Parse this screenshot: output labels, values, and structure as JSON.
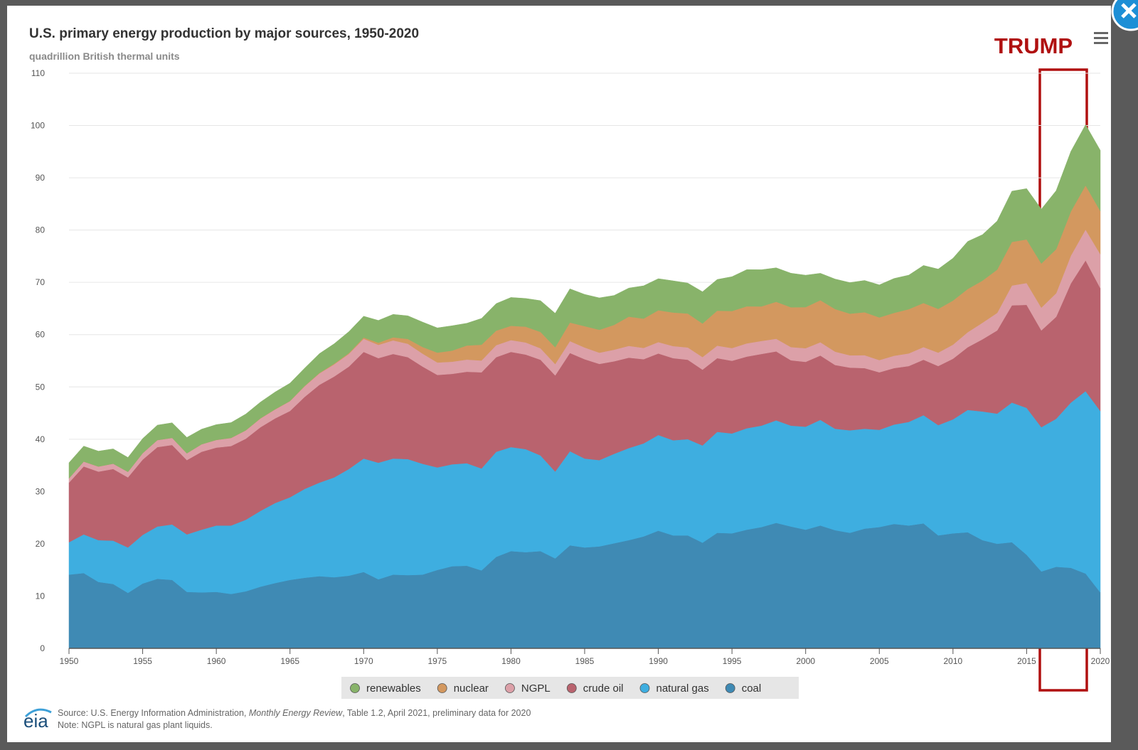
{
  "chart_data": {
    "type": "stacked_area",
    "title": "U.S. primary energy production by major sources, 1950-2020",
    "subtitle": "quadrillion British thermal units",
    "annotation": "TRUMP",
    "source_prefix": "Source: U.S. Energy Information Administration, ",
    "source_italic": "Monthly Energy Review",
    "source_suffix": ", Table 1.2, April 2021, preliminary data for 2020",
    "note": "Note: NGPL is natural gas plant liquids.",
    "logo": "eia",
    "x": [
      1950,
      1951,
      1952,
      1953,
      1954,
      1955,
      1956,
      1957,
      1958,
      1959,
      1960,
      1961,
      1962,
      1963,
      1964,
      1965,
      1966,
      1967,
      1968,
      1969,
      1970,
      1971,
      1972,
      1973,
      1974,
      1975,
      1976,
      1977,
      1978,
      1979,
      1980,
      1981,
      1982,
      1983,
      1984,
      1985,
      1986,
      1987,
      1988,
      1989,
      1990,
      1991,
      1992,
      1993,
      1994,
      1995,
      1996,
      1997,
      1998,
      1999,
      2000,
      2001,
      2002,
      2003,
      2004,
      2005,
      2006,
      2007,
      2008,
      2009,
      2010,
      2011,
      2012,
      2013,
      2014,
      2015,
      2016,
      2017,
      2018,
      2019,
      2020
    ],
    "xlim": [
      1950,
      2020
    ],
    "xticks": [
      1950,
      1955,
      1960,
      1965,
      1970,
      1975,
      1980,
      1985,
      1990,
      1995,
      2000,
      2005,
      2010,
      2015,
      2020
    ],
    "ylim": [
      0,
      110
    ],
    "yticks": [
      0,
      10,
      20,
      30,
      40,
      50,
      60,
      70,
      80,
      90,
      100,
      110
    ],
    "grid": true,
    "legend": "bottom",
    "series": [
      {
        "name": "coal",
        "color": "#3f8ab4",
        "values": [
          14.1,
          14.4,
          12.7,
          12.3,
          10.6,
          12.4,
          13.3,
          13.1,
          10.8,
          10.7,
          10.8,
          10.4,
          10.9,
          11.8,
          12.5,
          13.1,
          13.5,
          13.8,
          13.6,
          13.9,
          14.6,
          13.2,
          14.1,
          14.0,
          14.1,
          15.0,
          15.7,
          15.8,
          14.9,
          17.5,
          18.6,
          18.4,
          18.6,
          17.2,
          19.7,
          19.3,
          19.5,
          20.1,
          20.7,
          21.4,
          22.5,
          21.6,
          21.6,
          20.2,
          22.1,
          22.0,
          22.7,
          23.2,
          24.0,
          23.3,
          22.7,
          23.5,
          22.6,
          22.1,
          22.9,
          23.2,
          23.8,
          23.5,
          23.9,
          21.6,
          22.0,
          22.2,
          20.7,
          20.0,
          20.3,
          17.9,
          14.7,
          15.6,
          15.4,
          14.3,
          10.7
        ]
      },
      {
        "name": "natural gas",
        "color": "#3eaee0",
        "values": [
          6.2,
          7.4,
          8.0,
          8.3,
          8.7,
          9.3,
          10.0,
          10.6,
          11.0,
          12.0,
          12.7,
          13.1,
          13.7,
          14.5,
          15.3,
          15.8,
          17.0,
          17.9,
          19.1,
          20.4,
          21.7,
          22.3,
          22.2,
          22.2,
          21.2,
          19.6,
          19.5,
          19.6,
          19.5,
          20.1,
          19.9,
          19.7,
          18.3,
          16.6,
          18.0,
          17.0,
          16.5,
          17.1,
          17.6,
          17.8,
          18.3,
          18.2,
          18.4,
          18.6,
          19.3,
          19.1,
          19.4,
          19.4,
          19.6,
          19.3,
          19.7,
          20.2,
          19.4,
          19.6,
          19.1,
          18.6,
          19.0,
          19.8,
          20.7,
          21.1,
          21.8,
          23.4,
          24.6,
          24.9,
          26.7,
          28.1,
          27.6,
          28.3,
          31.6,
          34.9,
          34.7
        ]
      },
      {
        "name": "crude oil",
        "color": "#b9636e",
        "values": [
          11.4,
          13.0,
          13.1,
          13.7,
          13.4,
          14.4,
          15.2,
          15.2,
          14.2,
          14.9,
          14.9,
          15.2,
          15.5,
          16.0,
          16.2,
          16.5,
          17.6,
          18.7,
          19.3,
          19.6,
          20.4,
          20.0,
          20.0,
          19.5,
          18.6,
          17.7,
          17.3,
          17.5,
          18.4,
          18.1,
          18.2,
          18.1,
          18.3,
          18.4,
          18.8,
          19.0,
          18.4,
          17.7,
          17.3,
          16.1,
          15.6,
          15.7,
          15.2,
          14.5,
          14.1,
          13.9,
          13.7,
          13.7,
          13.2,
          12.5,
          12.4,
          12.3,
          12.2,
          12.0,
          11.6,
          11.0,
          10.8,
          10.7,
          10.6,
          11.3,
          11.6,
          12.0,
          13.8,
          15.9,
          18.6,
          19.7,
          18.5,
          19.5,
          22.8,
          25.0,
          23.5
        ]
      },
      {
        "name": "NGPL",
        "color": "#dca0a8",
        "values": [
          0.82,
          0.93,
          0.98,
          1.03,
          1.06,
          1.24,
          1.34,
          1.36,
          1.31,
          1.44,
          1.46,
          1.54,
          1.59,
          1.67,
          1.71,
          1.88,
          2.03,
          2.19,
          2.32,
          2.43,
          2.51,
          2.54,
          2.6,
          2.57,
          2.47,
          2.37,
          2.33,
          2.33,
          2.25,
          2.29,
          2.25,
          2.31,
          2.19,
          2.18,
          2.27,
          2.24,
          2.15,
          2.22,
          2.26,
          2.16,
          2.17,
          2.31,
          2.36,
          2.41,
          2.39,
          2.44,
          2.53,
          2.5,
          2.42,
          2.53,
          2.61,
          2.55,
          2.56,
          2.35,
          2.47,
          2.33,
          2.36,
          2.41,
          2.42,
          2.57,
          2.69,
          2.86,
          3.17,
          3.36,
          3.8,
          4.17,
          4.37,
          4.52,
          5.31,
          5.9,
          6.5
        ]
      },
      {
        "name": "nuclear",
        "color": "#d3985f",
        "values": [
          0,
          0,
          0,
          0,
          0,
          0,
          0,
          0,
          0.002,
          0.002,
          0.006,
          0.02,
          0.026,
          0.038,
          0.04,
          0.043,
          0.064,
          0.088,
          0.142,
          0.154,
          0.239,
          0.413,
          0.584,
          0.91,
          1.27,
          1.9,
          2.11,
          2.7,
          3.02,
          2.78,
          2.74,
          3.01,
          3.13,
          3.2,
          3.55,
          4.08,
          4.38,
          4.75,
          5.59,
          5.6,
          6.1,
          6.42,
          6.48,
          6.41,
          6.69,
          7.08,
          7.09,
          6.6,
          7.07,
          7.61,
          7.86,
          8.03,
          8.14,
          7.96,
          8.22,
          8.16,
          8.21,
          8.46,
          8.43,
          8.36,
          8.43,
          8.27,
          8.06,
          8.27,
          8.34,
          8.34,
          8.43,
          8.42,
          8.44,
          8.45,
          8.25
        ]
      },
      {
        "name": "renewables",
        "color": "#88b36a",
        "values": [
          2.98,
          2.96,
          2.94,
          2.83,
          2.75,
          2.78,
          2.85,
          2.89,
          3.03,
          2.88,
          2.93,
          2.93,
          3.1,
          3.11,
          3.29,
          3.4,
          3.41,
          3.7,
          3.8,
          4.1,
          4.08,
          4.27,
          4.4,
          4.43,
          4.77,
          4.72,
          4.77,
          4.25,
          5.04,
          5.17,
          5.43,
          5.41,
          5.98,
          6.5,
          6.44,
          6.08,
          6.11,
          5.63,
          5.46,
          6.29,
          6.04,
          6.07,
          5.82,
          6.08,
          5.97,
          6.56,
          7.01,
          7.02,
          6.49,
          6.51,
          6.1,
          5.16,
          5.73,
          5.94,
          6.07,
          6.23,
          6.58,
          6.51,
          7.19,
          7.61,
          8.1,
          9.1,
          8.79,
          9.3,
          9.7,
          9.72,
          10.4,
          11.2,
          11.5,
          11.6,
          11.6
        ]
      }
    ]
  }
}
